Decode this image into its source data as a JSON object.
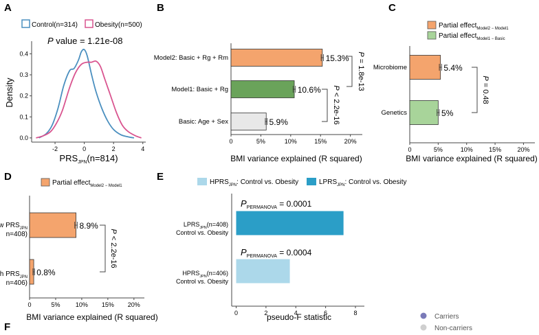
{
  "panel_labels": [
    "A",
    "B",
    "C",
    "D",
    "E",
    "F"
  ],
  "colors": {
    "control": "#4a8fbf",
    "obesity": "#d9548f",
    "partial_effect_orange": "#f4a46d",
    "model1_green": "#6aa35a",
    "basic_grey": "#e8e8e8",
    "partial_effect_green": "#a8d49a",
    "hprs_light_blue": "#acd8ea",
    "lprs_blue": "#2b9ec7",
    "carriers_purple": "#7a7ab8",
    "noncarriers_grey": "#cfcfcf"
  },
  "panelA": {
    "legend_control": "Control(n=314)",
    "legend_obesity": "Obesity(n=500)",
    "pvalue_label": "P",
    "pvalue_text": " value = 1.21e-08",
    "ylabel": "Density",
    "xlabel_main": "PRS",
    "xlabel_sub": "JPN",
    "xlabel_tail": "(n=814)"
  },
  "panelB": {
    "xlabel": "BMI variance explained (R squared)",
    "bracket1_p": "P",
    "bracket1_text": " = 1.8e-13",
    "bracket2_p": "P",
    "bracket2_text": " < 2.2e-16"
  },
  "panelC": {
    "legend1_main": "Partial effect",
    "legend1_sub": "Model2 − Model1",
    "legend2_main": "Partial effect",
    "legend2_sub": "Model1 − Basic",
    "xlabel": "BMI variance explained (R squared)",
    "bracket_p": "P",
    "bracket_text": " = 0.48"
  },
  "panelD": {
    "legend_main": "Partial effect",
    "legend_sub": "Model2 − Model1",
    "xlabel": "BMI variance explained (R squared)",
    "bracket_p": "P",
    "bracket_text": " < 2.2e-16",
    "cat1_line1": "w PRS",
    "cat1_sub": "JPN",
    "cat1_line2": "n=408)",
    "cat2_line1": "h PRS",
    "cat2_sub": "JPN",
    "cat2_line2": "n=406)"
  },
  "panelE": {
    "legend1_main": "HPRS",
    "legend1_sub": "JPN",
    "legend1_tail": ": Control vs. Obesity",
    "legend2_main": "LPRS",
    "legend2_sub": "JPN",
    "legend2_tail": ": Control vs. Obesity",
    "ann_p": "P",
    "ann_sub": "PERMANOVA",
    "ann1_val": " = 0.0001",
    "ann2_val": " = 0.0004",
    "cat1_main": "LPRS",
    "cat1_sub": "JPN",
    "cat1_tail": "(n=408)",
    "cat1_line2": "Control vs. Obesity",
    "cat2_main": "HPRS",
    "cat2_sub": "JPN",
    "cat2_tail": "(n=406)",
    "cat2_line2": "Control vs. Obesity",
    "xlabel": "pseudo-F statistic"
  },
  "panelF": {
    "legend_carriers": "Carriers",
    "legend_noncarriers": "Non-carriers"
  },
  "chart_data": [
    {
      "panel": "A",
      "type": "line",
      "xlabel": "PRS_JPN(n=814)",
      "ylabel": "Density",
      "xlim": [
        -3.6,
        4.2
      ],
      "ylim": [
        -0.02,
        0.46
      ],
      "x_ticks": [
        -2,
        0,
        2,
        4
      ],
      "y_ticks": [
        0.0,
        0.1,
        0.2,
        0.3,
        0.4
      ],
      "series": [
        {
          "name": "Control(n=314)",
          "x": [
            -3.1,
            -2.6,
            -2.2,
            -1.8,
            -1.4,
            -1.0,
            -0.7,
            -0.4,
            -0.2,
            0.0,
            0.2,
            0.5,
            0.8,
            1.2,
            1.6,
            2.0,
            2.5,
            3.0,
            3.4
          ],
          "y": [
            0.0,
            0.02,
            0.06,
            0.14,
            0.25,
            0.32,
            0.33,
            0.37,
            0.41,
            0.42,
            0.39,
            0.3,
            0.22,
            0.14,
            0.08,
            0.04,
            0.015,
            0.005,
            0.0
          ]
        },
        {
          "name": "Obesity(n=500)",
          "x": [
            -3.3,
            -2.8,
            -2.3,
            -1.9,
            -1.5,
            -1.0,
            -0.6,
            -0.2,
            0.2,
            0.5,
            0.8,
            1.1,
            1.4,
            1.8,
            2.2,
            2.6,
            3.0,
            3.5,
            3.9
          ],
          "y": [
            0.0,
            0.01,
            0.03,
            0.07,
            0.13,
            0.24,
            0.31,
            0.35,
            0.36,
            0.36,
            0.365,
            0.34,
            0.28,
            0.2,
            0.12,
            0.06,
            0.03,
            0.01,
            0.0
          ]
        }
      ]
    },
    {
      "panel": "B",
      "type": "bar",
      "orientation": "horizontal",
      "categories": [
        "Model2: Basic + Rg + Rm",
        "Model1: Basic + Rg",
        "Basic: Age + Sex"
      ],
      "values": [
        15.3,
        10.6,
        5.9
      ],
      "errors": [
        0.2,
        0.2,
        0.15
      ],
      "labels": [
        "15.3%",
        "10.6%",
        "5.9%"
      ],
      "xlabel": "BMI variance explained (R squared)",
      "xlim": [
        0,
        22
      ],
      "x_ticks": [
        0,
        5,
        10,
        15,
        20
      ],
      "x_tick_labels": [
        "0",
        "5%",
        "10%",
        "15%",
        "20%"
      ]
    },
    {
      "panel": "C",
      "type": "bar",
      "orientation": "horizontal",
      "categories": [
        "Microbiome",
        "Genetics"
      ],
      "values": [
        5.4,
        5.0
      ],
      "errors": [
        0.2,
        0.2
      ],
      "labels": [
        "5.4%",
        "5%"
      ],
      "series_names": [
        "Partial effect Model2 − Model1",
        "Partial effect Model1 − Basic"
      ],
      "xlabel": "BMI variance explained (R squared)",
      "xlim": [
        0,
        22
      ],
      "x_ticks": [
        0,
        5,
        10,
        15,
        20
      ],
      "x_tick_labels": [
        "0",
        "5%",
        "10%",
        "15%",
        "20%"
      ]
    },
    {
      "panel": "D",
      "type": "bar",
      "orientation": "horizontal",
      "categories": [
        "w PRS_JPN n=408)",
        "h PRS_JPN n=406)"
      ],
      "values": [
        8.9,
        0.8
      ],
      "errors": [
        0.25,
        0.15
      ],
      "labels": [
        "8.9%",
        "0.8%"
      ],
      "xlabel": "BMI variance explained (R squared)",
      "xlim": [
        0,
        22
      ],
      "x_ticks": [
        0,
        5,
        10,
        15,
        20
      ],
      "x_tick_labels": [
        "0",
        "5%",
        "10%",
        "15%",
        "20%"
      ]
    },
    {
      "panel": "E",
      "type": "bar",
      "orientation": "horizontal",
      "categories": [
        "LPRS_JPN(n=408) Control vs. Obesity",
        "HPRS_JPN(n=406) Control vs. Obesity"
      ],
      "values": [
        7.2,
        3.6
      ],
      "xlabel": "pseudo-F statistic",
      "xlim": [
        -0.3,
        8.6
      ],
      "x_ticks": [
        0,
        2,
        4,
        6,
        8
      ],
      "x_tick_labels": [
        "0",
        "2",
        "4",
        "6",
        "8"
      ]
    }
  ]
}
